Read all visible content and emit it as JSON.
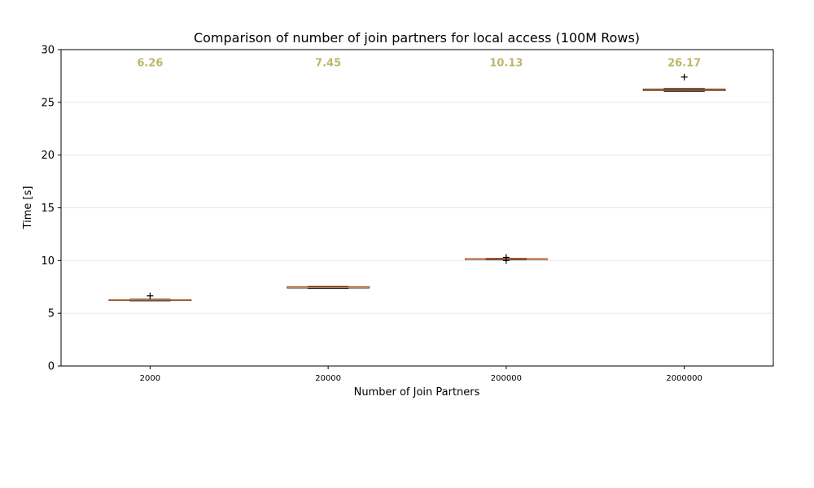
{
  "chart_data": {
    "type": "box",
    "title": "Comparison of number of join partners for local access (100M Rows)",
    "xlabel": "Number of Join Partners",
    "ylabel": "Time [s]",
    "categories": [
      "2000",
      "20000",
      "200000",
      "2000000"
    ],
    "ylim": [
      0,
      30
    ],
    "yticks": [
      0,
      5,
      10,
      15,
      20,
      25,
      30
    ],
    "grid": "horizontal",
    "colors": {
      "median": "#e07b39",
      "box": "#000000",
      "annotation": "#bdb76b",
      "grid": "#e6e6e6"
    },
    "boxes": [
      {
        "category": "2000",
        "whisker_low": 6.18,
        "q1": 6.24,
        "median": 6.26,
        "q3": 6.29,
        "whisker_high": 6.32,
        "fliers": [
          6.65
        ]
      },
      {
        "category": "20000",
        "whisker_low": 7.36,
        "q1": 7.4,
        "median": 7.45,
        "q3": 7.5,
        "whisker_high": 7.54,
        "fliers": []
      },
      {
        "category": "200000",
        "whisker_low": 10.06,
        "q1": 10.1,
        "median": 10.13,
        "q3": 10.17,
        "whisker_high": 10.2,
        "fliers": [
          10.0,
          10.3
        ]
      },
      {
        "category": "2000000",
        "whisker_low": 26.05,
        "q1": 26.12,
        "median": 26.17,
        "q3": 26.25,
        "whisker_high": 26.3,
        "fliers": [
          27.4
        ]
      }
    ],
    "annotations": [
      "6.26",
      "7.45",
      "10.13",
      "26.17"
    ],
    "annotation_y": 28.8
  }
}
